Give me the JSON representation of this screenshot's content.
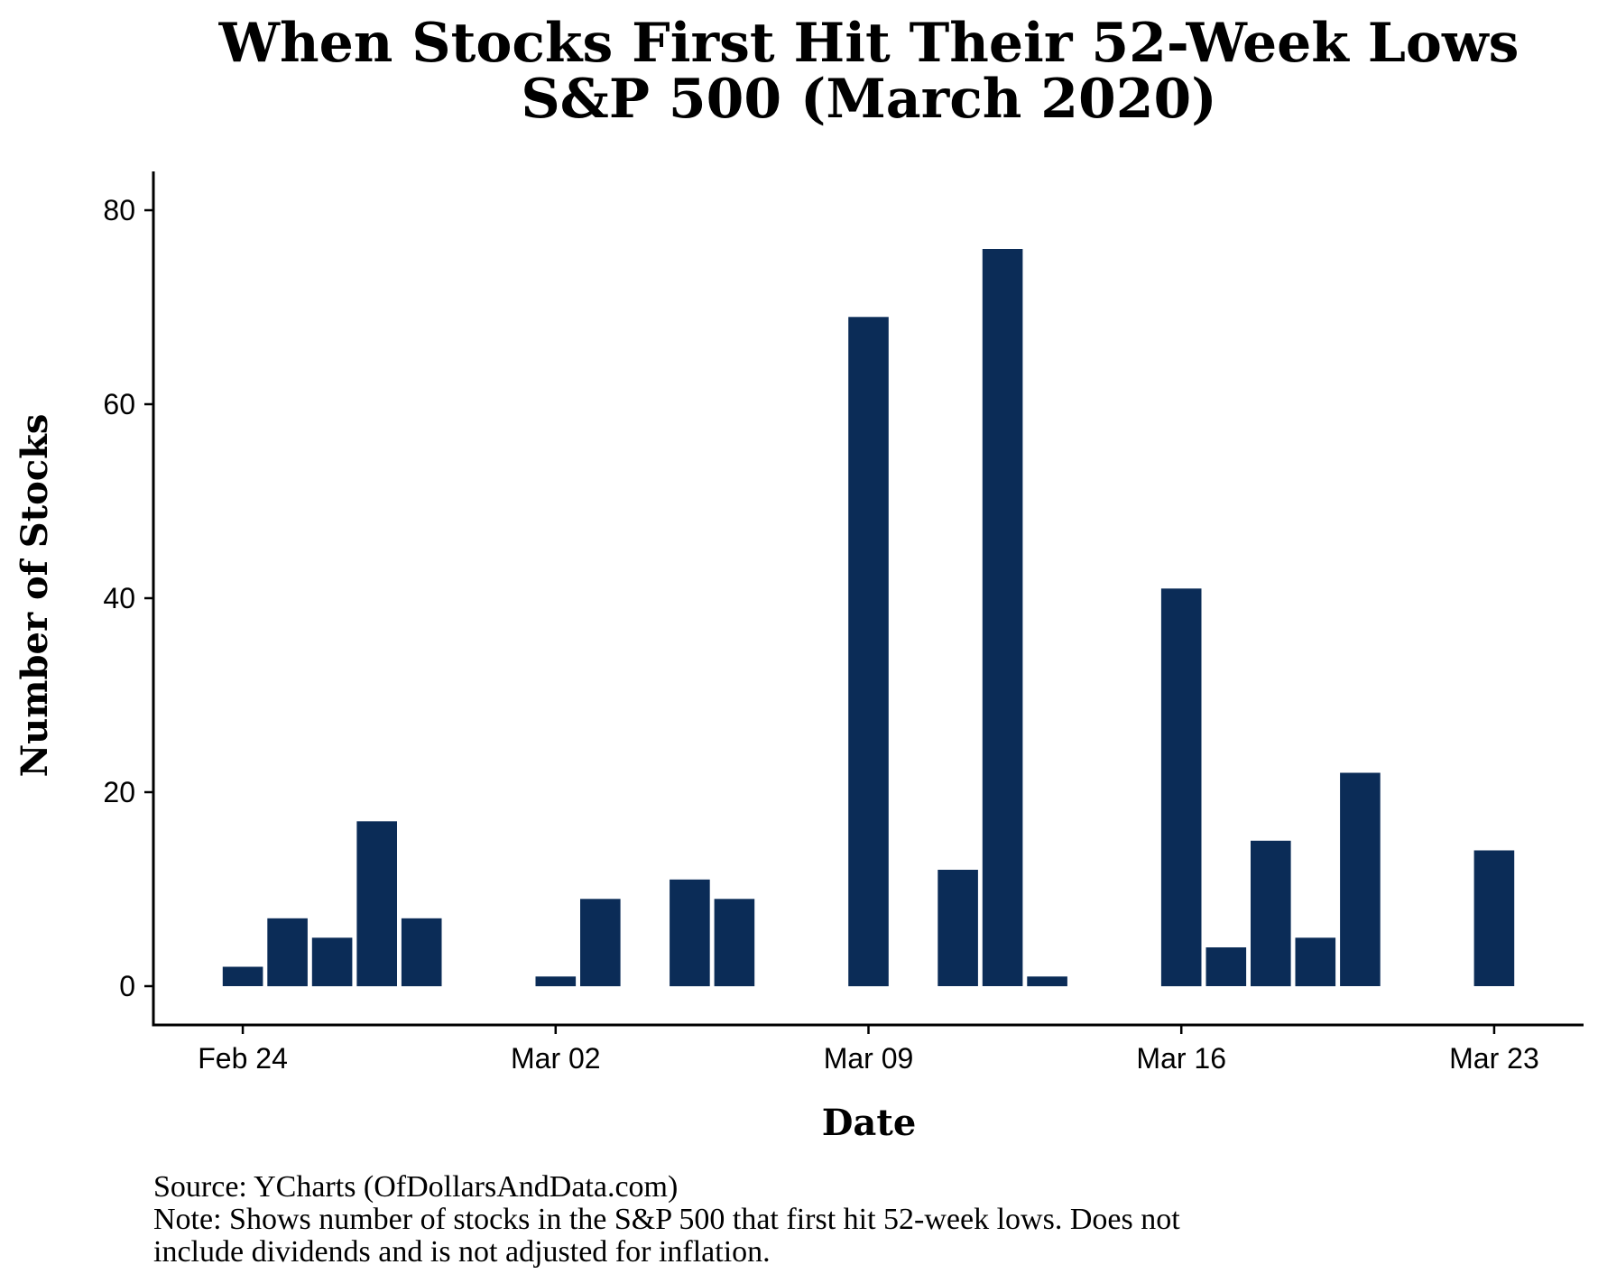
{
  "chart_data": {
    "type": "bar",
    "title": "When Stocks First Hit Their 52-Week Lows",
    "subtitle": "S&P 500 (March 2020)",
    "xlabel": "Date",
    "ylabel": "Number of Stocks",
    "x_ticks": [
      "Feb 24",
      "Mar 02",
      "Mar 09",
      "Mar 16",
      "Mar 23"
    ],
    "y_ticks": [
      0,
      20,
      40,
      60,
      80
    ],
    "ylim": [
      -4,
      84
    ],
    "x_range_days": [
      -2,
      30
    ],
    "bar_color": "#0b2c57",
    "grid": false,
    "legend": "none",
    "series": [
      {
        "dates": [
          "Feb 24",
          "Feb 25",
          "Feb 26",
          "Feb 27",
          "Feb 28",
          "Mar 02",
          "Mar 03",
          "Mar 05",
          "Mar 06",
          "Mar 09",
          "Mar 11",
          "Mar 12",
          "Mar 13",
          "Mar 16",
          "Mar 17",
          "Mar 18",
          "Mar 19",
          "Mar 20",
          "Mar 23"
        ],
        "values": [
          2,
          7,
          5,
          17,
          7,
          1,
          9,
          11,
          9,
          69,
          12,
          76,
          1,
          41,
          4,
          15,
          5,
          22,
          14
        ]
      }
    ],
    "captions": [
      "Source: YCharts (OfDollarsAndData.com)",
      "Note: Shows number of stocks in the S&P 500 that first hit 52-week lows. Does not",
      "include dividends and is not adjusted for inflation."
    ]
  }
}
